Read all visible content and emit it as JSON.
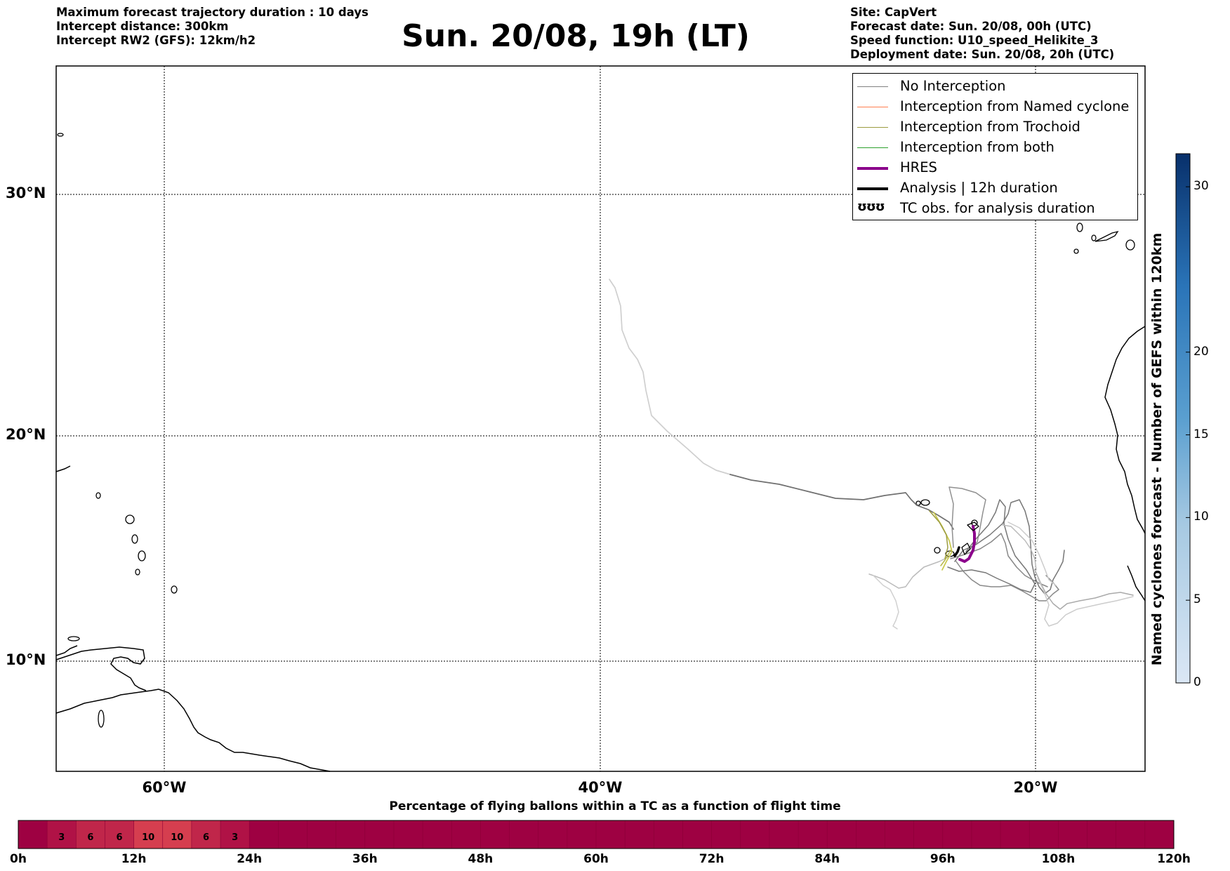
{
  "header": {
    "left": [
      "Maximum forecast trajectory duration : 10 days",
      "Intercept distance: 300km",
      "Intercept RW2 (GFS):  12km/h2"
    ],
    "right": [
      "Site: CapVert",
      "Forecast date: Sun. 20/08, 00h (UTC)",
      "Speed function: U10_speed_Helikite_3",
      "Deployment date: Sun. 20/08, 20h (UTC)"
    ],
    "title": "Sun. 20/08, 19h (LT)"
  },
  "map": {
    "lon_range": [
      -65,
      -15
    ],
    "lat_range": [
      5.5,
      34.8
    ],
    "lat_labels": [
      {
        "lat": 30,
        "text": "30°N"
      },
      {
        "lat": 20,
        "text": "20°N"
      },
      {
        "lat": 10,
        "text": "10°N"
      }
    ],
    "lon_labels": [
      {
        "lon": -60,
        "text": "60°W"
      },
      {
        "lon": -40,
        "text": "40°W"
      },
      {
        "lon": -20,
        "text": "20°W"
      }
    ]
  },
  "legend": {
    "items": [
      {
        "label": "No Interception",
        "color": "#808080"
      },
      {
        "label": "Interception from Named cyclone",
        "color": "#ff7f50"
      },
      {
        "label": "Interception from Trochoid",
        "color": "#9c9c40"
      },
      {
        "label": "Interception from both",
        "color": "#2ca02c"
      },
      {
        "label": "HRES",
        "color": "#8b008b"
      },
      {
        "label": "Analysis | 12h duration",
        "color": "#000000"
      },
      {
        "label": "TC obs. for analysis duration",
        "symbol": "ʊʊʊ"
      }
    ]
  },
  "colorbar": {
    "title": "Named cyclones forecast - Number of GEFS within 120km",
    "min": 0,
    "max": 32,
    "ticks": [
      0,
      5,
      10,
      15,
      20,
      30
    ],
    "color_low": "#dbe7f5",
    "color_high": "#08306b"
  },
  "timebar": {
    "title": "Percentage of flying ballons within a TC as a function of flight time",
    "labels": [
      "0h",
      "12h",
      "24h",
      "36h",
      "48h",
      "60h",
      "72h",
      "84h",
      "96h",
      "108h",
      "120h"
    ],
    "max_hours": 120,
    "cells": [
      {
        "start": 3,
        "end": 6,
        "value": "3"
      },
      {
        "start": 6,
        "end": 9,
        "value": "6"
      },
      {
        "start": 9,
        "end": 12,
        "value": "6"
      },
      {
        "start": 12,
        "end": 15,
        "value": "10"
      },
      {
        "start": 15,
        "end": 18,
        "value": "10"
      },
      {
        "start": 18,
        "end": 21,
        "value": "6"
      },
      {
        "start": 21,
        "end": 24,
        "value": "3"
      }
    ],
    "base_color": "#9e0142"
  }
}
